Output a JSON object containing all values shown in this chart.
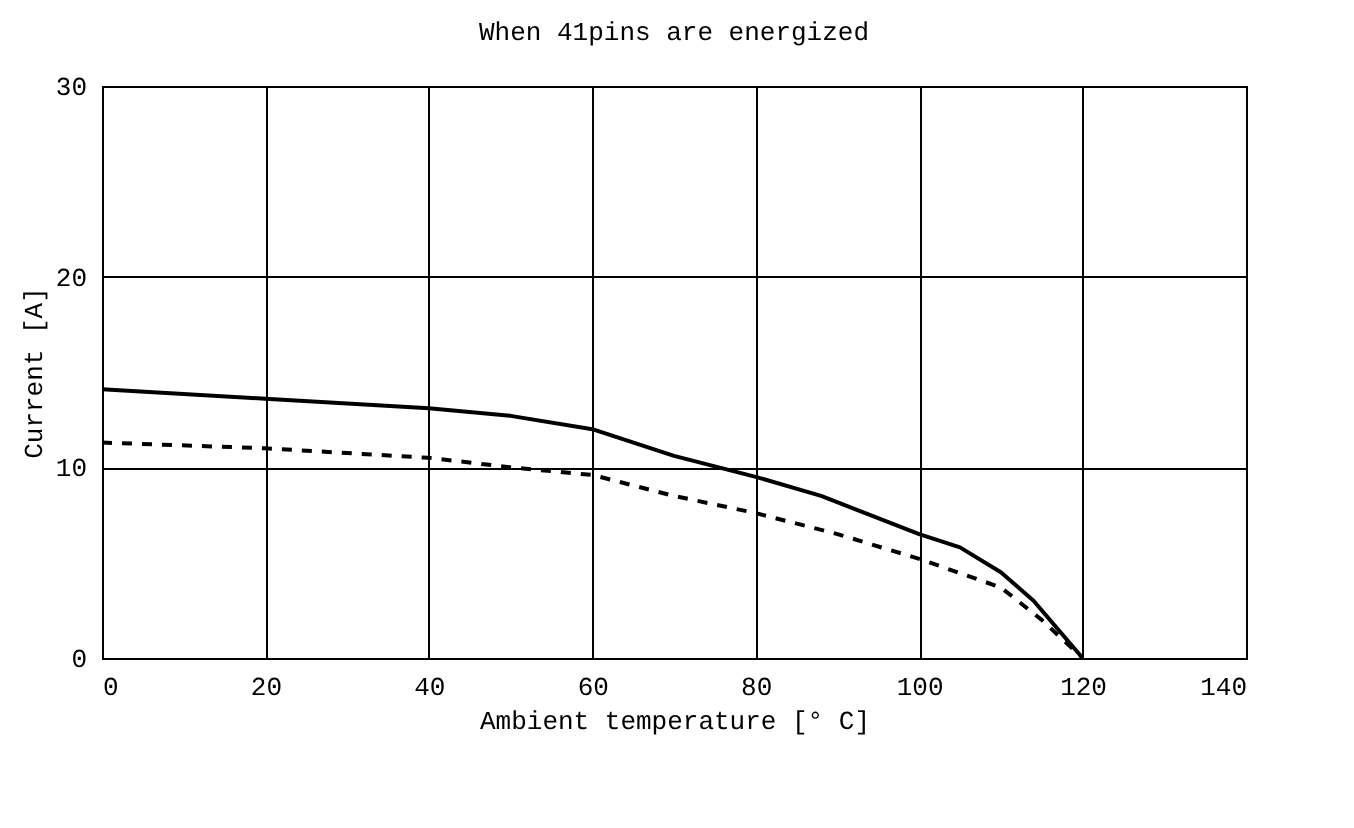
{
  "chart_data": {
    "type": "line",
    "title": "When 41pins are energized",
    "xlabel": "Ambient temperature [° C]",
    "ylabel": "Current [A]",
    "xlim": [
      0,
      140
    ],
    "xticks": [
      0,
      20,
      40,
      60,
      80,
      100,
      120,
      140
    ],
    "ylim": [
      0,
      30
    ],
    "yticks": [
      0,
      10,
      20,
      30
    ],
    "grid": true,
    "series": [
      {
        "color": "#000000",
        "line_style": "solid",
        "x": [
          0,
          20,
          40,
          50,
          60,
          70,
          80,
          88,
          100,
          105,
          110,
          114,
          120
        ],
        "values": [
          14.1,
          13.6,
          13.1,
          12.7,
          12.0,
          10.6,
          9.5,
          8.5,
          6.5,
          5.8,
          4.5,
          3.0,
          0
        ]
      },
      {
        "color": "#000000",
        "line_style": "dashed",
        "x": [
          0,
          20,
          40,
          50,
          60,
          70,
          80,
          90,
          100,
          110,
          115,
          120
        ],
        "values": [
          11.3,
          11.0,
          10.5,
          10.0,
          9.6,
          8.5,
          7.6,
          6.5,
          5.2,
          3.7,
          2.0,
          0
        ]
      }
    ]
  }
}
